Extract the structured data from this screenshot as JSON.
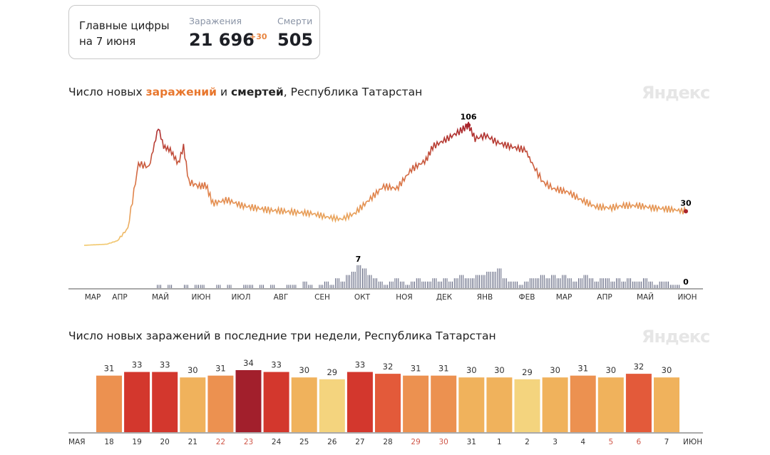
{
  "summary": {
    "label_line1": "Главные цифры",
    "label_line2": "на 7 июня",
    "infections_label": "Заражения",
    "infections_total": "21 696",
    "infections_delta": "+30",
    "deaths_label": "Смерти",
    "deaths_total": "505"
  },
  "logo": "Яндекс",
  "chart_data": [
    {
      "type": "line",
      "title_parts": [
        "Число новых ",
        "заражений",
        " и ",
        "смертей",
        ", Республика Татарстан"
      ],
      "colors": {
        "infections_low": "#f2c96e",
        "infections_mid": "#e0804a",
        "infections_high": "#a8242c",
        "deaths": "#5a5f7a",
        "axis": "#555555"
      },
      "x_ticks": [
        "МАР",
        "АПР",
        "МАЙ",
        "ИЮН",
        "ИЮЛ",
        "АВГ",
        "СЕН",
        "ОКТ",
        "НОЯ",
        "ДЕК",
        "ЯНВ",
        "ФЕВ",
        "МАР",
        "АПР",
        "МАЙ",
        "ИЮН"
      ],
      "annotations": {
        "infections_peak": "106",
        "infections_last": "30",
        "deaths_peak": "7",
        "deaths_last": "0"
      },
      "infections": [
        [
          "2020-03-10",
          0
        ],
        [
          "2020-03-27",
          1
        ],
        [
          "2020-04-04",
          4
        ],
        [
          "2020-04-12",
          15
        ],
        [
          "2020-04-20",
          72
        ],
        [
          "2020-04-28",
          69
        ],
        [
          "2020-05-05",
          104
        ],
        [
          "2020-05-09",
          87
        ],
        [
          "2020-05-14",
          84
        ],
        [
          "2020-05-20",
          72
        ],
        [
          "2020-05-24",
          87
        ],
        [
          "2020-05-28",
          56
        ],
        [
          "2020-06-05",
          52
        ],
        [
          "2020-06-10",
          53
        ],
        [
          "2020-06-15",
          37
        ],
        [
          "2020-06-26",
          40
        ],
        [
          "2020-07-07",
          35
        ],
        [
          "2020-07-17",
          33
        ],
        [
          "2020-07-28",
          31
        ],
        [
          "2020-08-08",
          30
        ],
        [
          "2020-08-18",
          29
        ],
        [
          "2020-08-29",
          28
        ],
        [
          "2020-09-09",
          25
        ],
        [
          "2020-09-20",
          23
        ],
        [
          "2020-09-30",
          28
        ],
        [
          "2020-10-11",
          40
        ],
        [
          "2020-10-22",
          52
        ],
        [
          "2020-11-01",
          50
        ],
        [
          "2020-11-12",
          67
        ],
        [
          "2020-11-23",
          75
        ],
        [
          "2020-11-28",
          87
        ],
        [
          "2020-12-09",
          94
        ],
        [
          "2020-12-19",
          101
        ],
        [
          "2020-12-25",
          106
        ],
        [
          "2020-12-30",
          94
        ],
        [
          "2021-01-07",
          97
        ],
        [
          "2021-01-15",
          91
        ],
        [
          "2021-01-26",
          87
        ],
        [
          "2021-02-06",
          84
        ],
        [
          "2021-02-11",
          72
        ],
        [
          "2021-02-19",
          56
        ],
        [
          "2021-02-27",
          50
        ],
        [
          "2021-03-10",
          47
        ],
        [
          "2021-03-20",
          40
        ],
        [
          "2021-03-31",
          34
        ],
        [
          "2021-04-11",
          33
        ],
        [
          "2021-04-21",
          35
        ],
        [
          "2021-05-02",
          35
        ],
        [
          "2021-05-13",
          33
        ],
        [
          "2021-05-24",
          32
        ],
        [
          "2021-06-07",
          30
        ]
      ],
      "deaths": [
        0,
        0,
        1,
        0,
        1,
        0,
        0,
        1,
        0,
        1,
        1,
        0,
        0,
        1,
        0,
        1,
        0,
        0,
        1,
        1,
        0,
        1,
        0,
        1,
        0,
        0,
        1,
        1,
        0,
        2,
        1,
        0,
        1,
        2,
        1,
        3,
        2,
        4,
        5,
        7,
        6,
        4,
        3,
        2,
        1,
        2,
        3,
        2,
        1,
        2,
        3,
        2,
        2,
        3,
        2,
        3,
        2,
        3,
        4,
        3,
        3,
        4,
        4,
        5,
        5,
        6,
        3,
        2,
        2,
        1,
        2,
        3,
        3,
        4,
        3,
        4,
        3,
        4,
        3,
        2,
        3,
        4,
        3,
        2,
        3,
        3,
        2,
        3,
        2,
        3,
        2,
        2,
        3,
        2,
        1,
        2,
        2,
        1,
        1,
        0
      ]
    },
    {
      "type": "bar",
      "title": "Число новых заражений в последние три недели, Республика Татарстан",
      "x_start_label": "МАЯ",
      "x_end_label": "ИЮН",
      "categories": [
        "18",
        "19",
        "20",
        "21",
        "22",
        "23",
        "24",
        "25",
        "26",
        "27",
        "28",
        "29",
        "30",
        "31",
        "1",
        "2",
        "3",
        "4",
        "5",
        "6",
        "7"
      ],
      "weekend": [
        false,
        false,
        false,
        false,
        true,
        true,
        false,
        false,
        false,
        false,
        false,
        true,
        true,
        false,
        false,
        false,
        false,
        false,
        true,
        true,
        false
      ],
      "values": [
        31,
        33,
        33,
        30,
        31,
        34,
        33,
        30,
        29,
        33,
        32,
        31,
        31,
        30,
        30,
        29,
        30,
        31,
        30,
        32,
        30
      ],
      "ylim": [
        0,
        34
      ],
      "colors": {
        "29": "#f4d47e",
        "30": "#f0b25c",
        "31": "#ec9150",
        "32": "#e35a3a",
        "33": "#d3372d",
        "34": "#a21f2c",
        "weekend_label": "#d0584a",
        "label": "#333333"
      }
    }
  ]
}
